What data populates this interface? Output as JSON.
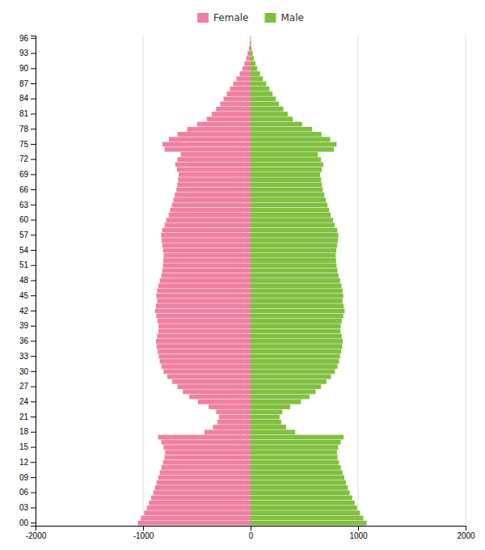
{
  "chart_data": {
    "type": "bar",
    "orientation": "horizontal",
    "grid": true,
    "legend": "top",
    "categories": [
      "00",
      null,
      null,
      "03",
      null,
      null,
      "06",
      null,
      null,
      "09",
      null,
      null,
      "12",
      null,
      null,
      "15",
      null,
      null,
      "18",
      null,
      null,
      "21",
      null,
      null,
      "24",
      null,
      null,
      "27",
      null,
      null,
      "30",
      null,
      null,
      "33",
      null,
      null,
      "36",
      null,
      null,
      "39",
      null,
      null,
      "42",
      null,
      null,
      "45",
      null,
      null,
      "48",
      null,
      null,
      "51",
      null,
      null,
      "54",
      null,
      null,
      "57",
      null,
      null,
      "60",
      null,
      null,
      "63",
      null,
      null,
      "66",
      null,
      null,
      "69",
      null,
      null,
      "72",
      null,
      null,
      "75",
      null,
      null,
      "78",
      null,
      null,
      "81",
      null,
      null,
      "84",
      null,
      null,
      "87",
      null,
      null,
      "90",
      null,
      null,
      "93",
      null,
      null,
      "96"
    ],
    "xlim": [
      -2000,
      2000
    ],
    "xticks": [
      -2000,
      -1000,
      0,
      1000,
      2000
    ],
    "series": [
      {
        "name": "Female",
        "color": "#f080a0",
        "values": [
          -1050,
          -1020,
          -990,
          -965,
          -945,
          -925,
          -905,
          -890,
          -875,
          -860,
          -845,
          -830,
          -815,
          -800,
          -795,
          -810,
          -830,
          -860,
          -430,
          -350,
          -310,
          -295,
          -320,
          -390,
          -490,
          -570,
          -630,
          -680,
          -730,
          -775,
          -810,
          -830,
          -845,
          -855,
          -865,
          -875,
          -880,
          -870,
          -858,
          -855,
          -865,
          -878,
          -890,
          -880,
          -870,
          -878,
          -870,
          -858,
          -845,
          -830,
          -822,
          -815,
          -812,
          -808,
          -815,
          -822,
          -828,
          -832,
          -822,
          -800,
          -785,
          -762,
          -748,
          -732,
          -718,
          -705,
          -690,
          -682,
          -675,
          -668,
          -685,
          -700,
          -680,
          -650,
          -800,
          -820,
          -760,
          -680,
          -590,
          -498,
          -408,
          -362,
          -322,
          -282,
          -252,
          -222,
          -192,
          -162,
          -132,
          -102,
          -76,
          -58,
          -40,
          -28,
          -16,
          -8,
          -3
        ]
      },
      {
        "name": "Male",
        "color": "#80c040",
        "values": [
          1080,
          1048,
          1018,
          990,
          968,
          945,
          922,
          905,
          888,
          872,
          856,
          840,
          822,
          808,
          803,
          815,
          838,
          865,
          415,
          330,
          285,
          270,
          295,
          368,
          468,
          548,
          605,
          655,
          705,
          748,
          785,
          808,
          822,
          832,
          842,
          852,
          858,
          848,
          836,
          838,
          848,
          862,
          875,
          865,
          855,
          862,
          855,
          845,
          832,
          818,
          808,
          800,
          796,
          792,
          798,
          806,
          812,
          816,
          806,
          782,
          768,
          745,
          730,
          715,
          700,
          686,
          672,
          664,
          656,
          648,
          662,
          676,
          655,
          625,
          775,
          800,
          740,
          660,
          572,
          480,
          392,
          345,
          305,
          265,
          235,
          205,
          175,
          145,
          115,
          88,
          62,
          46,
          30,
          20,
          10,
          5,
          2
        ]
      }
    ]
  }
}
